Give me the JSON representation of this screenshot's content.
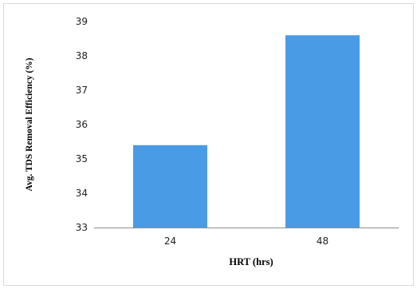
{
  "chart_data": {
    "type": "bar",
    "categories": [
      "24",
      "48"
    ],
    "values": [
      35.4,
      38.6
    ],
    "title": "",
    "xlabel": "HRT (hrs)",
    "ylabel": "Avg. TDS Removal Efficiency  (%)",
    "ylim": [
      33,
      39
    ],
    "yticks": [
      33,
      34,
      35,
      36,
      37,
      38,
      39
    ],
    "grid": false,
    "legend": "none",
    "bar_color": "#4a9be5"
  }
}
